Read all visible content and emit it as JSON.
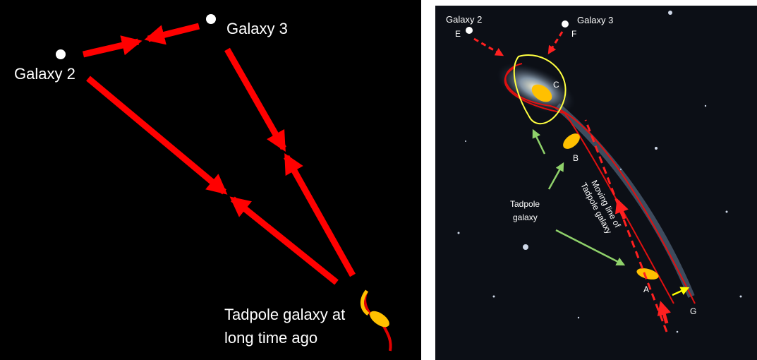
{
  "left": {
    "galaxy2": "Galaxy 2",
    "galaxy3": "Galaxy 3",
    "tadpole_lines": [
      "Tadpole galaxy at",
      "long time ago"
    ]
  },
  "right": {
    "galaxy2": "Galaxy 2",
    "galaxy3": "Galaxy 3",
    "label_e": "E",
    "label_f": "F",
    "label_c": "C",
    "label_b": "B",
    "label_a": "A",
    "label_g": "G",
    "tadpole_lines": [
      "Tadpole",
      "galaxy"
    ],
    "moving_lines": [
      "Moving line of",
      "Tadpole galaxy"
    ]
  }
}
